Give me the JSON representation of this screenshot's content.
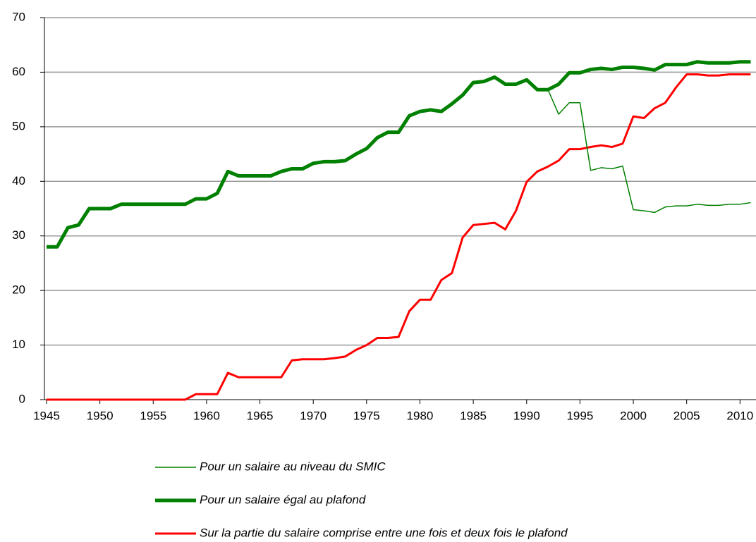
{
  "chart_data": {
    "type": "line",
    "x": [
      1945,
      1946,
      1947,
      1948,
      1949,
      1950,
      1951,
      1952,
      1953,
      1954,
      1955,
      1956,
      1957,
      1958,
      1959,
      1960,
      1961,
      1962,
      1963,
      1964,
      1965,
      1966,
      1967,
      1968,
      1969,
      1970,
      1971,
      1972,
      1973,
      1974,
      1975,
      1976,
      1977,
      1978,
      1979,
      1980,
      1981,
      1982,
      1983,
      1984,
      1985,
      1986,
      1987,
      1988,
      1989,
      1990,
      1991,
      1992,
      1993,
      1994,
      1995,
      1996,
      1997,
      1998,
      1999,
      2000,
      2001,
      2002,
      2003,
      2004,
      2005,
      2006,
      2007,
      2008,
      2009,
      2010,
      2011
    ],
    "series": [
      {
        "name": "Pour un salaire au niveau du SMIC",
        "color": "#008000",
        "width": 1.5,
        "values": [
          28,
          28,
          31.5,
          32,
          35,
          35,
          35,
          35.8,
          35.8,
          35.8,
          35.8,
          35.8,
          35.8,
          35.8,
          36.8,
          36.8,
          37.8,
          41.8,
          41,
          41,
          41,
          41,
          41.8,
          42.3,
          42.3,
          43.3,
          43.6,
          43.6,
          43.8,
          45,
          46,
          48,
          49,
          49,
          52,
          52.8,
          53.1,
          52.8,
          54.2,
          55.8,
          58.1,
          58.3,
          59.1,
          57.8,
          57.8,
          58.6,
          56.8,
          56.8,
          52.3,
          54.4,
          54.4,
          42,
          42.5,
          42.3,
          42.8,
          34.8,
          34.6,
          34.3,
          35.3,
          35.5,
          35.5,
          35.8,
          35.6,
          35.6,
          35.8,
          35.8,
          36.1
        ]
      },
      {
        "name": "Pour un salaire égal au plafond",
        "color": "#008000",
        "width": 5,
        "values": [
          28,
          28,
          31.5,
          32,
          35,
          35,
          35,
          35.8,
          35.8,
          35.8,
          35.8,
          35.8,
          35.8,
          35.8,
          36.8,
          36.8,
          37.8,
          41.8,
          41,
          41,
          41,
          41,
          41.8,
          42.3,
          42.3,
          43.3,
          43.6,
          43.6,
          43.8,
          45,
          46,
          48,
          49,
          49,
          52,
          52.8,
          53.1,
          52.8,
          54.2,
          55.8,
          58.1,
          58.3,
          59.1,
          57.8,
          57.8,
          58.6,
          56.8,
          56.8,
          57.8,
          59.9,
          59.9,
          60.5,
          60.7,
          60.5,
          60.9,
          60.9,
          60.7,
          60.4,
          61.4,
          61.4,
          61.4,
          61.9,
          61.7,
          61.7,
          61.7,
          61.9,
          61.9
        ]
      },
      {
        "name": "Sur la partie du salaire comprise entre une fois et deux fois le plafond",
        "color": "#ff0000",
        "width": 3,
        "values": [
          0,
          0,
          0,
          0,
          0,
          0,
          0,
          0,
          0,
          0,
          0,
          0,
          0,
          0,
          1,
          1,
          1,
          4.9,
          4.1,
          4.1,
          4.1,
          4.1,
          4.1,
          7.2,
          7.4,
          7.4,
          7.4,
          7.6,
          7.9,
          9.1,
          10,
          11.3,
          11.3,
          11.5,
          16.2,
          18.3,
          18.3,
          21.9,
          23.2,
          29.7,
          32,
          32.2,
          32.4,
          31.2,
          34.6,
          39.9,
          41.8,
          42.7,
          43.8,
          45.9,
          45.9,
          46.3,
          46.6,
          46.3,
          46.9,
          51.9,
          51.6,
          53.4,
          54.4,
          57.2,
          59.6,
          59.6,
          59.4,
          59.4,
          59.6,
          59.6,
          59.6
        ]
      }
    ],
    "xlim": [
      1945,
      2011.5
    ],
    "xticks": [
      1945,
      1950,
      1955,
      1960,
      1965,
      1970,
      1975,
      1980,
      1985,
      1990,
      1995,
      2000,
      2005,
      2010
    ],
    "ylim": [
      0,
      70
    ],
    "yticks": [
      0,
      10,
      20,
      30,
      40,
      50,
      60,
      70
    ],
    "grid": true,
    "legend": "bottom"
  }
}
